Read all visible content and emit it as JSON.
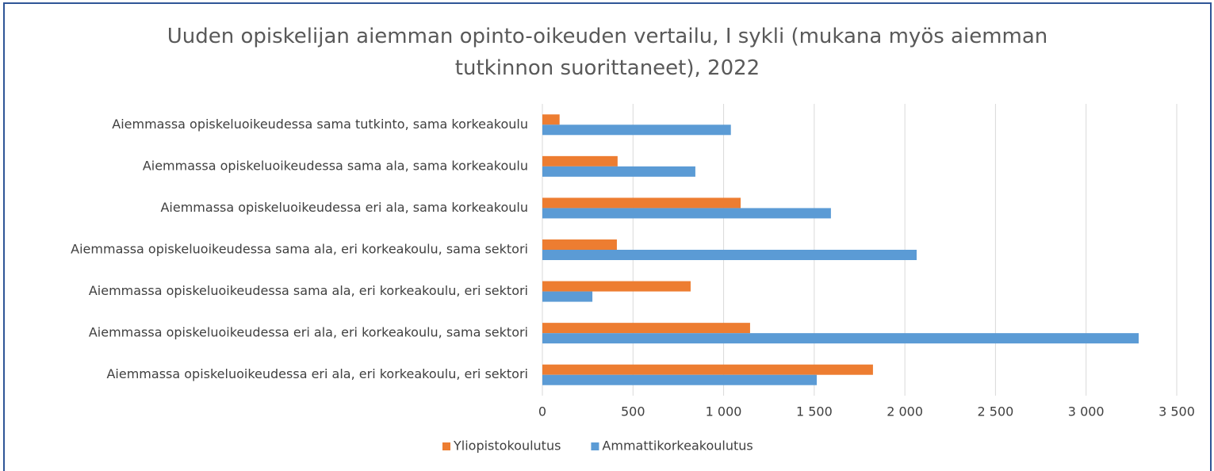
{
  "chart_data": {
    "type": "hbar",
    "title": "Uuden opiskelijan aiemman opinto-oikeuden vertailu, I sykli (mukana myös aiemman tutkinnon suorittaneet), 2022",
    "categories": [
      "Aiemmassa opiskeluoikeudessa sama tutkinto, sama korkeakoulu",
      "Aiemmassa opiskeluoikeudessa sama ala, sama korkeakoulu",
      "Aiemmassa opiskeluoikeudessa eri ala, sama korkeakoulu",
      "Aiemmassa opiskeluoikeudessa sama ala, eri korkeakoulu, sama sektori",
      "Aiemmassa opiskeluoikeudessa sama ala, eri korkeakoulu, eri sektori",
      "Aiemmassa opiskeluoikeudessa eri ala, eri korkeakoulu, sama sektori",
      "Aiemmassa opiskeluoikeudessa eri ala, eri korkeakoulu, eri sektori"
    ],
    "series": [
      {
        "name": "Yliopistokoulutus",
        "color": "#ed7d31",
        "values": [
          95,
          415,
          1094,
          411,
          818,
          1146,
          1824
        ]
      },
      {
        "name": "Ammattikorkeakoulutus",
        "color": "#5b9bd5",
        "values": [
          1040,
          844,
          1592,
          2065,
          276,
          3290,
          1514
        ]
      }
    ],
    "xlim": [
      0,
      3500
    ],
    "xticks": [
      0,
      500,
      {
        "value": 1000,
        "label": "1 000"
      },
      {
        "value": 1500,
        "label": "1 500"
      },
      {
        "value": 2000,
        "label": "2 000"
      },
      {
        "value": 2500,
        "label": "2 500"
      },
      {
        "value": 3000,
        "label": "3 000"
      },
      {
        "value": 3500,
        "label": "3 500"
      }
    ],
    "grid": true,
    "legend": "bottom"
  }
}
